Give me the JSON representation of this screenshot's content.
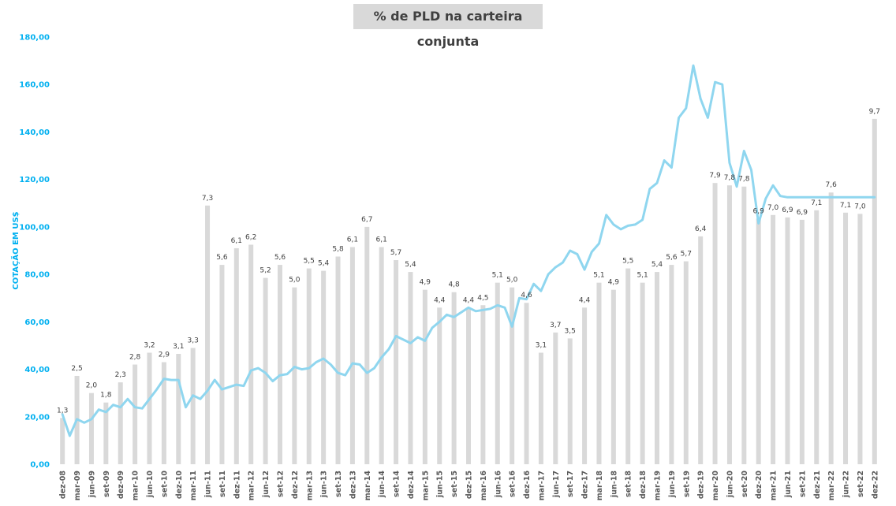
{
  "chart_data": {
    "type": "bar",
    "title": "% de PLD na carteira conjunta",
    "ylabel": "COTAÇÃO EM US$",
    "ylim": [
      0,
      180
    ],
    "yticks": [
      "0,00",
      "20,00",
      "40,00",
      "60,00",
      "80,00",
      "100,00",
      "120,00",
      "140,00",
      "160,00",
      "180,00"
    ],
    "categories": [
      "dez-08",
      "mar-09",
      "jun-09",
      "set-09",
      "dez-09",
      "mar-10",
      "jun-10",
      "set-10",
      "dez-10",
      "mar-11",
      "jun-11",
      "set-11",
      "dez-11",
      "mar-12",
      "jun-12",
      "set-12",
      "dez-12",
      "mar-13",
      "jun-13",
      "set-13",
      "dez-13",
      "mar-14",
      "jun-14",
      "set-14",
      "dez-14",
      "mar-15",
      "jun-15",
      "set-15",
      "dez-15",
      "mar-16",
      "jun-16",
      "set-16",
      "dez-16",
      "mar-17",
      "jun-17",
      "set-17",
      "dez-17",
      "mar-18",
      "jun-18",
      "set-18",
      "dez-18",
      "mar-19",
      "jun-19",
      "set-19",
      "dez-19",
      "mar-20",
      "jun-20",
      "set-20",
      "dez-20",
      "mar-21",
      "jun-21",
      "set-21",
      "dez-21",
      "mar-22",
      "jun-22",
      "set-22",
      "dez-22"
    ],
    "series": [
      {
        "type": "bar",
        "color": "#d9d9d9",
        "labels": [
          "1,3",
          "2,5",
          "2,0",
          "1,8",
          "2,3",
          "2,8",
          "3,2",
          "2,9",
          "3,1",
          "3,3",
          "7,3",
          "5,6",
          "6,1",
          "6,2",
          "5,2",
          "5,6",
          "5,0",
          "5,5",
          "5,4",
          "5,8",
          "6,1",
          "6,7",
          "6,1",
          "5,7",
          "5,4",
          "4,9",
          "4,4",
          "4,8",
          "4,4",
          "4,5",
          "5,1",
          "5,0",
          "4,6",
          "3,1",
          "3,7",
          "3,5",
          "4,4",
          "5,1",
          "4,9",
          "5,5",
          "5,1",
          "5,4",
          "5,6",
          "5,7",
          "6,4",
          "7,9",
          "7,8",
          "7,8",
          "6,9",
          "7,0",
          "6,9",
          "6,9",
          "7,1",
          "7,6",
          "7,1",
          "7,0",
          "9,7"
        ],
        "values": [
          19.5,
          37.2,
          30,
          26,
          34.5,
          42,
          47,
          43,
          46.5,
          49,
          109,
          84,
          91,
          92.5,
          78.5,
          84,
          74.5,
          82.5,
          81.5,
          87.5,
          91.5,
          100,
          91.5,
          86,
          81,
          73.5,
          66,
          72.5,
          66,
          67,
          76.5,
          74.5,
          68,
          47,
          55.5,
          53,
          66,
          76.5,
          73.5,
          82.5,
          76.5,
          81,
          84,
          85.5,
          96,
          118.5,
          117.5,
          117,
          103.5,
          105,
          104,
          103,
          107,
          114.5,
          106,
          105.5,
          145.5
        ]
      },
      {
        "type": "line",
        "color": "#8fd6ef",
        "x": [
          0,
          0.5,
          1,
          1.5,
          2,
          2.5,
          3,
          3.5,
          4,
          4.5,
          5,
          5.5,
          6,
          6.5,
          7,
          7.5,
          8,
          8.5,
          9,
          9.5,
          10,
          10.5,
          11,
          11.5,
          12,
          12.5,
          13,
          13.5,
          14,
          14.5,
          15,
          15.5,
          16,
          16.5,
          17,
          17.5,
          18,
          18.5,
          19,
          19.5,
          20,
          20.5,
          21,
          21.5,
          22,
          22.5,
          23,
          23.5,
          24,
          24.5,
          25,
          25.5,
          26,
          26.5,
          27,
          27.5,
          28,
          28.5,
          29,
          29.5,
          30,
          30.5,
          31,
          31.5,
          32,
          32.5,
          33,
          33.5,
          34,
          34.5,
          35,
          35.5,
          36,
          36.5,
          37,
          37.5,
          38,
          38.5,
          39,
          39.5,
          40,
          40.5,
          41,
          41.5,
          42,
          42.5,
          43,
          43.5,
          44,
          44.5,
          45,
          45.5,
          46,
          46.5,
          47,
          47.5,
          48,
          48.5,
          49,
          49.5,
          50,
          50.5,
          51,
          51.5,
          52,
          52.5,
          53,
          53.5,
          54,
          54.5,
          55,
          55.5,
          56,
          56.5,
          57
        ],
        "values": [
          21,
          12,
          19,
          17.5,
          19,
          23,
          22,
          25,
          24,
          27.5,
          24,
          23.5,
          27.5,
          31.5,
          36,
          35.5,
          35.5,
          24,
          29,
          27.5,
          31,
          35.5,
          31.5,
          32.5,
          33.5,
          33,
          39.5,
          40.5,
          38.5,
          35,
          37.5,
          38,
          41,
          40,
          40.5,
          43,
          44.5,
          42,
          38.5,
          37.5,
          42.5,
          42,
          38.5,
          40.5,
          45,
          48.5,
          54,
          52.5,
          51,
          53.5,
          52,
          57.5,
          60,
          63,
          62,
          64,
          66,
          64.5,
          65,
          65.5,
          67,
          66,
          58,
          70,
          69.5,
          76,
          73,
          80,
          83,
          85,
          90,
          88.5,
          82,
          89.5,
          93,
          105,
          101,
          99,
          100.5,
          101,
          103,
          116,
          118.5,
          128,
          125,
          146,
          150,
          168,
          154,
          146,
          161,
          160,
          127,
          117,
          132,
          124,
          101.5,
          112,
          117.5,
          113,
          112.5,
          112.5,
          112.5,
          112.5,
          112.5,
          112.5,
          112.5,
          112.5,
          112.5,
          112.5,
          112.5,
          112.5,
          112.5,
          112.5,
          112.5
        ]
      }
    ]
  }
}
